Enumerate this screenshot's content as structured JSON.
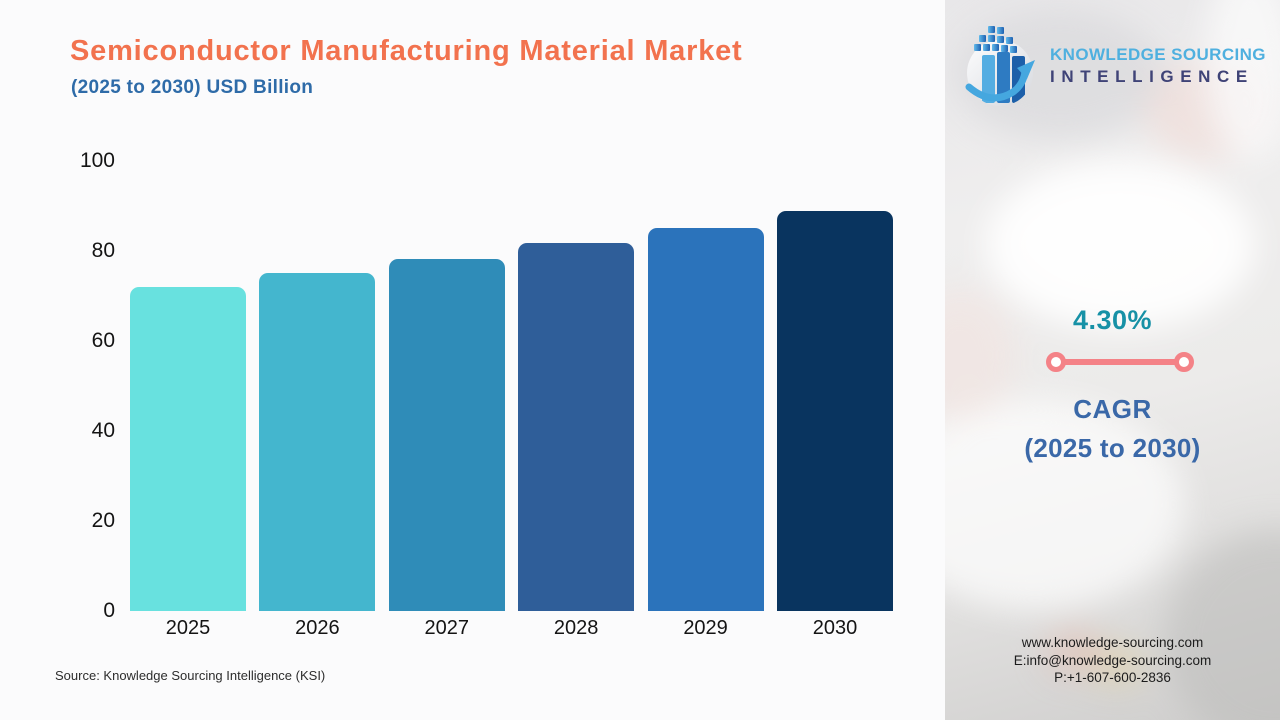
{
  "theme": {
    "title": "#F2724E",
    "subtitle": "#2E6BA8",
    "cagr-value": "#1791A6",
    "cagr-label": "#3A68A8",
    "cagr-line": "#F48287"
  },
  "header": {
    "title": "Semiconductor Manufacturing Material Market",
    "subtitle": "(2025 to 2030) USD Billion"
  },
  "logo": {
    "icon": "ksi-globe-bars-arrow",
    "line1": "KNOWLEDGE SOURCING",
    "line2": "INTELLIGENCE"
  },
  "chart_data": {
    "type": "bar",
    "title": "Semiconductor Manufacturing Material Market",
    "subtitle": "(2025 to 2030) USD Billion",
    "unit": "USD Billion",
    "categories": [
      "2025",
      "2026",
      "2027",
      "2028",
      "2029",
      "2030"
    ],
    "values": [
      72,
      75.1,
      78.3,
      81.7,
      85.2,
      88.9
    ],
    "bar_colors": [
      "#68E1DF",
      "#44B6CE",
      "#2F8CB8",
      "#2F5E99",
      "#2B73BB",
      "#09345F"
    ],
    "ylim": [
      0,
      100
    ],
    "yticks": [
      100,
      80,
      60,
      40,
      20,
      0
    ],
    "grid": false,
    "legend": "none",
    "xlabel": "",
    "ylabel": ""
  },
  "cagr": {
    "value": "4.30%",
    "label1": "CAGR",
    "label2": "(2025 to 2030)"
  },
  "source": "Source: Knowledge Sourcing Intelligence (KSI)",
  "contact": {
    "website": "www.knowledge-sourcing.com",
    "email": "E:info@knowledge-sourcing.com",
    "phone": "P:+1-607-600-2836"
  }
}
